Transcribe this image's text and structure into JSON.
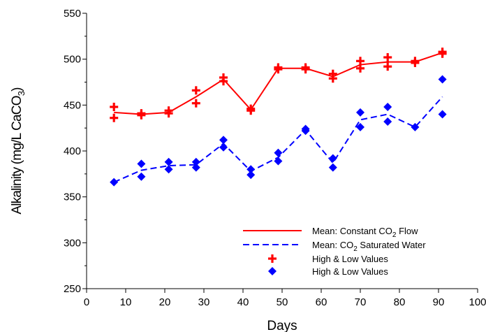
{
  "chart_data": {
    "type": "line",
    "title": "",
    "xlabel": "Days",
    "ylabel": {
      "main": "Alkalinity (mg/L CaCO",
      "sub": "3",
      "tail": ")"
    },
    "xlim": [
      0,
      100
    ],
    "ylim": [
      250,
      550
    ],
    "x_ticks": [
      "0",
      "10",
      "20",
      "30",
      "40",
      "50",
      "60",
      "70",
      "80",
      "90",
      "100"
    ],
    "y_ticks": [
      "250",
      "300",
      "350",
      "400",
      "450",
      "500",
      "550"
    ],
    "grid": false,
    "legend_position": "bottom-right",
    "series": [
      {
        "key": "constant",
        "kind": "line",
        "style": "solid",
        "color": "#ff0000",
        "legend": {
          "pre": "Mean: Constant CO",
          "sub": "2",
          "post": " Flow"
        },
        "points": [
          [
            7,
            442
          ],
          [
            14,
            440
          ],
          [
            21,
            442
          ],
          [
            28,
            459
          ],
          [
            35,
            478
          ],
          [
            42,
            445
          ],
          [
            49,
            490
          ],
          [
            56,
            490
          ],
          [
            63,
            481
          ],
          [
            70,
            494
          ],
          [
            77,
            497
          ],
          [
            84,
            497
          ],
          [
            91,
            507
          ]
        ]
      },
      {
        "key": "saturated",
        "kind": "line",
        "style": "dashed",
        "color": "#0000ff",
        "legend": {
          "pre": "Mean: CO",
          "sub": "2",
          "post": " Saturated Water"
        },
        "points": [
          [
            7,
            366
          ],
          [
            14,
            379
          ],
          [
            21,
            384
          ],
          [
            28,
            385
          ],
          [
            35,
            408
          ],
          [
            42,
            378
          ],
          [
            49,
            393
          ],
          [
            56,
            423
          ],
          [
            63,
            387
          ],
          [
            70,
            434
          ],
          [
            77,
            440
          ],
          [
            84,
            426
          ],
          [
            91,
            459
          ]
        ]
      },
      {
        "key": "constant_range",
        "kind": "markers",
        "marker": "cross",
        "color": "#ff0000",
        "legend": {
          "pre": "High & Low Values",
          "sub": "",
          "post": ""
        },
        "points": [
          [
            7,
            448
          ],
          [
            7,
            436
          ],
          [
            14,
            441
          ],
          [
            14,
            439
          ],
          [
            21,
            444
          ],
          [
            21,
            441
          ],
          [
            28,
            466
          ],
          [
            28,
            452
          ],
          [
            35,
            480
          ],
          [
            35,
            476
          ],
          [
            42,
            446
          ],
          [
            42,
            444
          ],
          [
            49,
            491
          ],
          [
            49,
            489
          ],
          [
            56,
            491
          ],
          [
            56,
            489
          ],
          [
            63,
            484
          ],
          [
            63,
            479
          ],
          [
            70,
            498
          ],
          [
            70,
            490
          ],
          [
            77,
            502
          ],
          [
            77,
            492
          ],
          [
            84,
            498
          ],
          [
            84,
            496
          ],
          [
            91,
            508
          ],
          [
            91,
            506
          ]
        ]
      },
      {
        "key": "saturated_range",
        "kind": "markers",
        "marker": "diamond",
        "color": "#0000ff",
        "legend": {
          "pre": "High & Low Values",
          "sub": "",
          "post": ""
        },
        "points": [
          [
            7,
            366
          ],
          [
            14,
            386
          ],
          [
            14,
            372
          ],
          [
            21,
            388
          ],
          [
            21,
            380
          ],
          [
            28,
            388
          ],
          [
            28,
            382
          ],
          [
            35,
            412
          ],
          [
            35,
            404
          ],
          [
            42,
            380
          ],
          [
            42,
            374
          ],
          [
            49,
            398
          ],
          [
            49,
            389
          ],
          [
            56,
            424
          ],
          [
            56,
            422
          ],
          [
            63,
            392
          ],
          [
            63,
            382
          ],
          [
            70,
            442
          ],
          [
            70,
            426
          ],
          [
            77,
            448
          ],
          [
            77,
            432
          ],
          [
            84,
            426
          ],
          [
            91,
            478
          ],
          [
            91,
            440
          ]
        ]
      }
    ]
  }
}
